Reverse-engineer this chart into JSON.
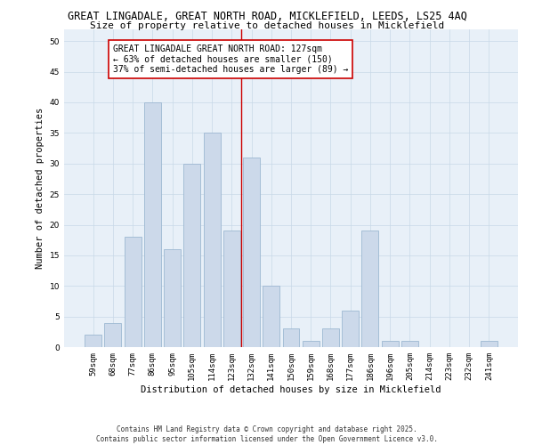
{
  "title_line1": "GREAT LINGADALE, GREAT NORTH ROAD, MICKLEFIELD, LEEDS, LS25 4AQ",
  "title_line2": "Size of property relative to detached houses in Micklefield",
  "xlabel": "Distribution of detached houses by size in Micklefield",
  "ylabel": "Number of detached properties",
  "categories": [
    "59sqm",
    "68sqm",
    "77sqm",
    "86sqm",
    "95sqm",
    "105sqm",
    "114sqm",
    "123sqm",
    "132sqm",
    "141sqm",
    "150sqm",
    "159sqm",
    "168sqm",
    "177sqm",
    "186sqm",
    "196sqm",
    "205sqm",
    "214sqm",
    "223sqm",
    "232sqm",
    "241sqm"
  ],
  "values": [
    2,
    4,
    18,
    40,
    16,
    30,
    35,
    19,
    31,
    10,
    3,
    1,
    3,
    6,
    19,
    1,
    1,
    0,
    0,
    0,
    1
  ],
  "bar_color": "#ccd9ea",
  "bar_edge_color": "#9db8d2",
  "vline_x_idx": 7.5,
  "vline_color": "#cc0000",
  "annotation_box_text": "GREAT LINGADALE GREAT NORTH ROAD: 127sqm\n← 63% of detached houses are smaller (150)\n37% of semi-detached houses are larger (89) →",
  "ylim": [
    0,
    52
  ],
  "yticks": [
    0,
    5,
    10,
    15,
    20,
    25,
    30,
    35,
    40,
    45,
    50
  ],
  "grid_color": "#c8d8e8",
  "background_color": "#e8f0f8",
  "footer": "Contains HM Land Registry data © Crown copyright and database right 2025.\nContains public sector information licensed under the Open Government Licence v3.0.",
  "title_fontsize": 8.5,
  "subtitle_fontsize": 8.0,
  "axis_label_fontsize": 7.5,
  "tick_fontsize": 6.5,
  "annotation_fontsize": 7.0,
  "footer_fontsize": 5.5
}
